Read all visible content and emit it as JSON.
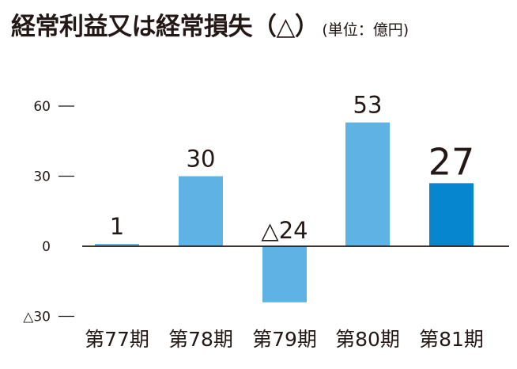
{
  "header": {
    "title": "経常利益又は経常損失（△）",
    "unit": "(単位：億円)"
  },
  "chart_data": {
    "type": "bar",
    "title": "経常利益又は経常損失（△）",
    "unit": "(単位：億円)",
    "categories": [
      "第77期",
      "第78期",
      "第79期",
      "第80期",
      "第81期"
    ],
    "values": [
      1,
      30,
      -24,
      53,
      27
    ],
    "value_labels": [
      "1",
      "30",
      "△24",
      "53",
      "27"
    ],
    "ylim": [
      -30,
      65
    ],
    "yticks": [
      60,
      30,
      0,
      -30
    ],
    "ytick_labels": [
      "60",
      "30",
      "0",
      "△30"
    ],
    "grid": false,
    "legend": "none",
    "highlight_index": 4,
    "colors": {
      "bar": "#5eb3e4",
      "highlight": "#0586cf",
      "axis": "#231815"
    }
  }
}
